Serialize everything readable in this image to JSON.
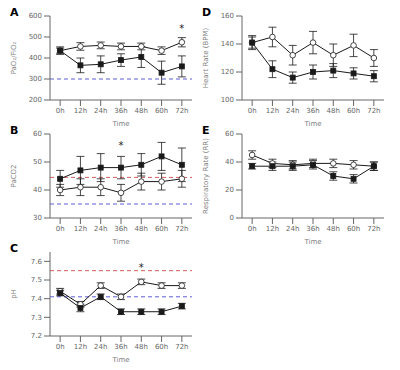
{
  "chart_data": [
    {
      "type": "line",
      "title": "A",
      "xlabel": "Time",
      "ylabel": "PaO₂/FiO₂",
      "x": [
        0,
        1,
        2,
        3,
        4,
        5,
        6
      ],
      "xlim": [
        -0.5,
        6.5
      ],
      "xticks": [
        {
          "value": 0,
          "label": "0h"
        },
        {
          "value": 1,
          "label": "12h"
        },
        {
          "value": 2,
          "label": "24h"
        },
        {
          "value": 3,
          "label": "36h"
        },
        {
          "value": 4,
          "label": "48h"
        },
        {
          "value": 5,
          "label": "60h"
        },
        {
          "value": 6,
          "label": "72h"
        }
      ],
      "ylim": [
        200,
        600
      ],
      "yticks": [
        200,
        300,
        400,
        500,
        600
      ],
      "grid": false,
      "series": [
        {
          "color": "#1a1a1a",
          "marker": "open_circle",
          "values": [
            435,
            455,
            460,
            455,
            455,
            435,
            475
          ],
          "errors": [
            12,
            18,
            16,
            16,
            16,
            18,
            22
          ]
        },
        {
          "color": "#1a1a1a",
          "marker": "square",
          "values": [
            435,
            365,
            370,
            390,
            405,
            330,
            360
          ],
          "errors": [
            18,
            35,
            40,
            30,
            50,
            55,
            50
          ]
        }
      ],
      "hlines": [
        {
          "value": 300,
          "color": "#3333cc",
          "line_style": "dashed"
        }
      ],
      "annotations": [
        {
          "x": 6,
          "y": 498,
          "text": "*",
          "color": "#1a1a1a"
        }
      ]
    },
    {
      "type": "line",
      "title": "B",
      "xlabel": "Time",
      "ylabel": "PaCO2",
      "x": [
        0,
        1,
        2,
        3,
        4,
        5,
        6
      ],
      "xlim": [
        -0.5,
        6.5
      ],
      "xticks": [
        {
          "value": 0,
          "label": "0h"
        },
        {
          "value": 1,
          "label": "12h"
        },
        {
          "value": 2,
          "label": "24h"
        },
        {
          "value": 3,
          "label": "36h"
        },
        {
          "value": 4,
          "label": "48h"
        },
        {
          "value": 5,
          "label": "60h"
        },
        {
          "value": 6,
          "label": "72h"
        }
      ],
      "ylim": [
        30,
        60
      ],
      "yticks": [
        30,
        40,
        50,
        60
      ],
      "grid": false,
      "series": [
        {
          "color": "#1a1a1a",
          "marker": "open_circle",
          "values": [
            40,
            41,
            41,
            39,
            43,
            43,
            44
          ],
          "errors": [
            2,
            3,
            3,
            3,
            3,
            3,
            3
          ]
        },
        {
          "color": "#1a1a1a",
          "marker": "square",
          "values": [
            44,
            47,
            48,
            48,
            49,
            52,
            49
          ],
          "errors": [
            3,
            5,
            5,
            4,
            4,
            5,
            6
          ]
        }
      ],
      "hlines": [
        {
          "value": 35,
          "color": "#3333cc",
          "line_style": "dashed"
        },
        {
          "value": 44.5,
          "color": "#cc3333",
          "line_style": "dashed"
        }
      ],
      "annotations": [
        {
          "x": 3,
          "y": 53,
          "text": "*",
          "color": "#1a1a1a"
        }
      ]
    },
    {
      "type": "line",
      "title": "C",
      "xlabel": "Time",
      "ylabel": "pH",
      "x": [
        0,
        1,
        2,
        3,
        4,
        5,
        6
      ],
      "xlim": [
        -0.5,
        6.5
      ],
      "xticks": [
        {
          "value": 0,
          "label": "0h"
        },
        {
          "value": 1,
          "label": "12h"
        },
        {
          "value": 2,
          "label": "24h"
        },
        {
          "value": 3,
          "label": "36h"
        },
        {
          "value": 4,
          "label": "48h"
        },
        {
          "value": 5,
          "label": "60h"
        },
        {
          "value": 6,
          "label": "72h"
        }
      ],
      "ylim": [
        7.2,
        7.65
      ],
      "yticks": [
        7.2,
        7.3,
        7.4,
        7.5,
        7.6
      ],
      "grid": false,
      "series": [
        {
          "color": "#1a1a1a",
          "marker": "open_circle",
          "values": [
            7.44,
            7.37,
            7.47,
            7.41,
            7.49,
            7.47,
            7.47
          ],
          "errors": [
            0.015,
            0.015,
            0.015,
            0.015,
            0.015,
            0.015,
            0.015
          ]
        },
        {
          "color": "#1a1a1a",
          "marker": "square",
          "values": [
            7.43,
            7.35,
            7.41,
            7.33,
            7.33,
            7.33,
            7.36
          ],
          "errors": [
            0.015,
            0.02,
            0.015,
            0.015,
            0.015,
            0.015,
            0.015
          ]
        }
      ],
      "hlines": [
        {
          "value": 7.41,
          "color": "#3333cc",
          "line_style": "dashed"
        },
        {
          "value": 7.55,
          "color": "#cc3333",
          "line_style": "dashed"
        }
      ],
      "annotations": [
        {
          "x": 4,
          "y": 7.52,
          "text": "*",
          "color": "#1a1a1a"
        }
      ]
    },
    {
      "type": "line",
      "title": "D",
      "xlabel": "Time",
      "ylabel": "Heart Rate (BPM)",
      "x": [
        0,
        1,
        2,
        3,
        4,
        5,
        6
      ],
      "xlim": [
        -0.5,
        6.5
      ],
      "xticks": [
        {
          "value": 0,
          "label": "0h"
        },
        {
          "value": 1,
          "label": "12h"
        },
        {
          "value": 2,
          "label": "24h"
        },
        {
          "value": 3,
          "label": "36h"
        },
        {
          "value": 4,
          "label": "48h"
        },
        {
          "value": 5,
          "label": "60h"
        },
        {
          "value": 6,
          "label": "72h"
        }
      ],
      "ylim": [
        100,
        160
      ],
      "yticks": [
        100,
        120,
        140,
        160
      ],
      "grid": false,
      "series": [
        {
          "color": "#1a1a1a",
          "marker": "open_circle",
          "values": [
            141,
            145,
            132,
            141,
            132,
            139,
            130
          ],
          "errors": [
            5,
            7,
            7,
            8,
            8,
            8,
            6
          ]
        },
        {
          "color": "#1a1a1a",
          "marker": "square",
          "values": [
            141,
            122,
            116,
            120,
            121,
            119,
            117
          ],
          "errors": [
            4,
            6,
            4,
            5,
            5,
            4,
            4
          ]
        }
      ]
    },
    {
      "type": "line",
      "title": "E",
      "xlabel": "Time",
      "ylabel": "Respiratory Rate (RR)",
      "x": [
        0,
        1,
        2,
        3,
        4,
        5,
        6
      ],
      "xlim": [
        -0.5,
        6.5
      ],
      "xticks": [
        {
          "value": 0,
          "label": "0h"
        },
        {
          "value": 1,
          "label": "12h"
        },
        {
          "value": 2,
          "label": "24h"
        },
        {
          "value": 3,
          "label": "36h"
        },
        {
          "value": 4,
          "label": "48h"
        },
        {
          "value": 5,
          "label": "60h"
        },
        {
          "value": 6,
          "label": "72h"
        }
      ],
      "ylim": [
        0,
        60
      ],
      "yticks": [
        0,
        20,
        40,
        60
      ],
      "grid": false,
      "series": [
        {
          "color": "#1a1a1a",
          "marker": "open_circle",
          "values": [
            45,
            39,
            38,
            39,
            39,
            38,
            37
          ],
          "errors": [
            3,
            3,
            3,
            3,
            3,
            3,
            3
          ]
        },
        {
          "color": "#1a1a1a",
          "marker": "square",
          "values": [
            37,
            37,
            37,
            38,
            30,
            28,
            37
          ],
          "errors": [
            2,
            3,
            3,
            3,
            3,
            3,
            3
          ]
        }
      ]
    }
  ]
}
